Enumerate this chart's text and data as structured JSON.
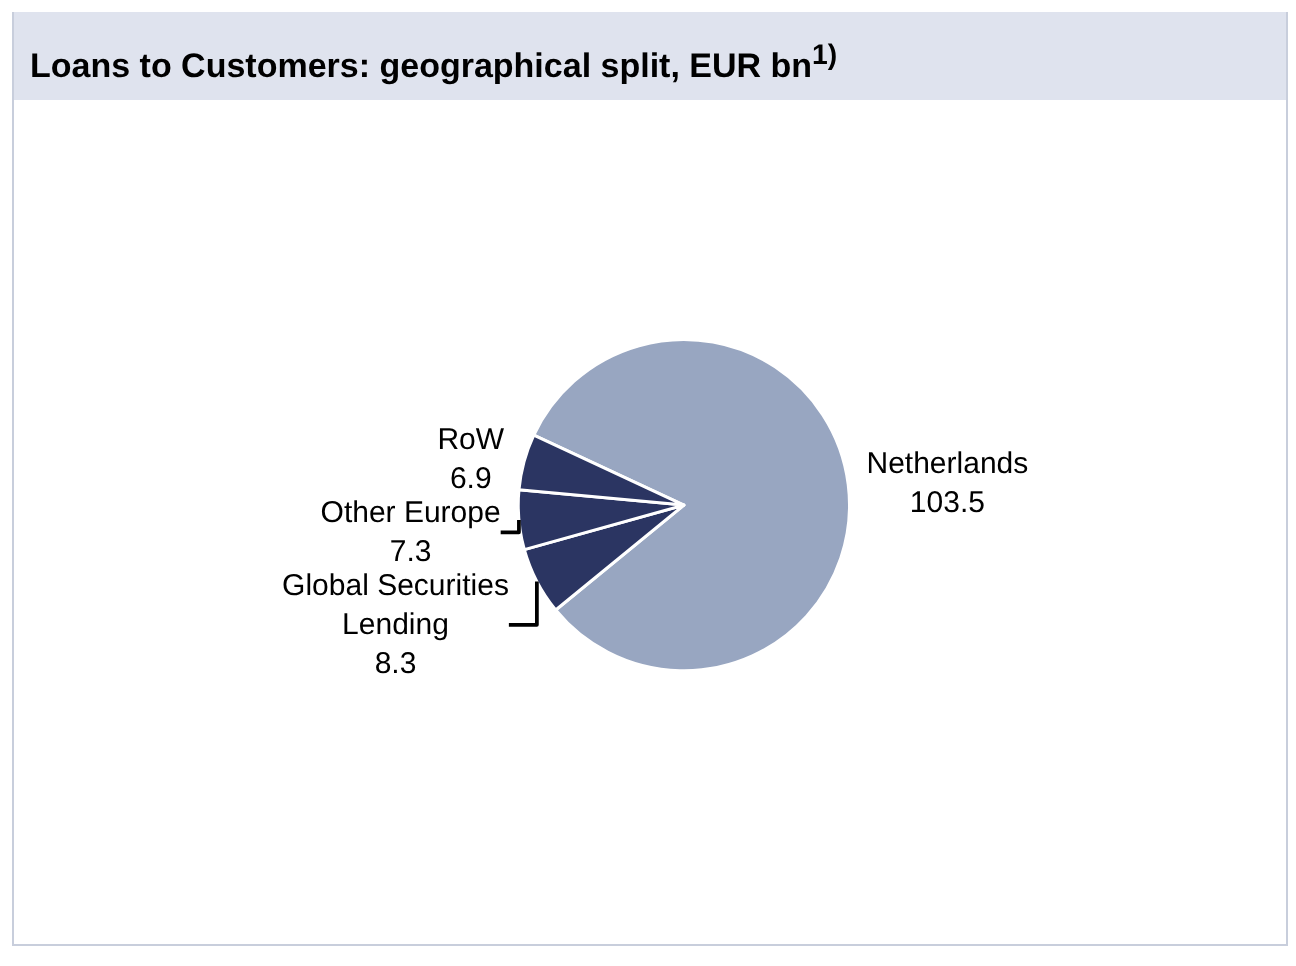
{
  "chart_data": {
    "type": "pie",
    "title": "Loans to Customers: geographical split, EUR bn$^{1)}$",
    "categories": [
      "Netherlands",
      "Global Securities Lending",
      "Other Europe",
      "RoW"
    ],
    "values": [
      103.5,
      8.3,
      7.3,
      6.9
    ],
    "colors": [
      "#98a6c1",
      "#2b3562",
      "#2b3562",
      "#2b3562"
    ],
    "data_labels": true,
    "legend": false
  }
}
